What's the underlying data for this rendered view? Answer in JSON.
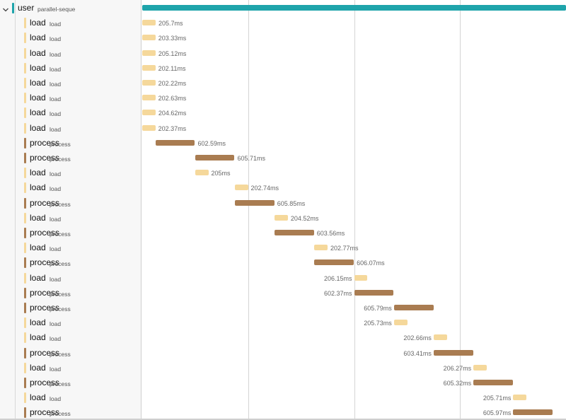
{
  "colors": {
    "user": "#1fa4ab",
    "load": "#f5d89b",
    "process": "#a97c51"
  },
  "timeline": {
    "total_ms": 6500,
    "grid_fractions": [
      0.25,
      0.5,
      0.75
    ]
  },
  "spans": [
    {
      "service": "user",
      "operation": "parallel-seque",
      "kind": "user",
      "start_ms": 0,
      "duration_ms": 6500,
      "duration_label": "",
      "root": true,
      "label_side": "none"
    },
    {
      "service": "load",
      "operation": "load",
      "kind": "load",
      "start_ms": 0,
      "duration_ms": 205.7,
      "duration_label": "205.7ms",
      "label_side": "right"
    },
    {
      "service": "load",
      "operation": "load",
      "kind": "load",
      "start_ms": 0,
      "duration_ms": 203.33,
      "duration_label": "203.33ms",
      "label_side": "right"
    },
    {
      "service": "load",
      "operation": "load",
      "kind": "load",
      "start_ms": 0,
      "duration_ms": 205.12,
      "duration_label": "205.12ms",
      "label_side": "right"
    },
    {
      "service": "load",
      "operation": "load",
      "kind": "load",
      "start_ms": 0,
      "duration_ms": 202.11,
      "duration_label": "202.11ms",
      "label_side": "right"
    },
    {
      "service": "load",
      "operation": "load",
      "kind": "load",
      "start_ms": 0,
      "duration_ms": 202.22,
      "duration_label": "202.22ms",
      "label_side": "right"
    },
    {
      "service": "load",
      "operation": "load",
      "kind": "load",
      "start_ms": 0,
      "duration_ms": 202.63,
      "duration_label": "202.63ms",
      "label_side": "right"
    },
    {
      "service": "load",
      "operation": "load",
      "kind": "load",
      "start_ms": 0,
      "duration_ms": 204.62,
      "duration_label": "204.62ms",
      "label_side": "right"
    },
    {
      "service": "load",
      "operation": "load",
      "kind": "load",
      "start_ms": 0,
      "duration_ms": 202.37,
      "duration_label": "202.37ms",
      "label_side": "right"
    },
    {
      "service": "process",
      "operation": "process",
      "kind": "process",
      "start_ms": 206,
      "duration_ms": 602.59,
      "duration_label": "602.59ms",
      "label_side": "right"
    },
    {
      "service": "process",
      "operation": "process",
      "kind": "process",
      "start_ms": 810,
      "duration_ms": 605.71,
      "duration_label": "605.71ms",
      "label_side": "right"
    },
    {
      "service": "load",
      "operation": "load",
      "kind": "load",
      "start_ms": 810,
      "duration_ms": 205,
      "duration_label": "205ms",
      "label_side": "right"
    },
    {
      "service": "load",
      "operation": "load",
      "kind": "load",
      "start_ms": 1420,
      "duration_ms": 202.74,
      "duration_label": "202.74ms",
      "label_side": "right"
    },
    {
      "service": "process",
      "operation": "process",
      "kind": "process",
      "start_ms": 1420,
      "duration_ms": 605.85,
      "duration_label": "605.85ms",
      "label_side": "right"
    },
    {
      "service": "load",
      "operation": "load",
      "kind": "load",
      "start_ms": 2030,
      "duration_ms": 204.52,
      "duration_label": "204.52ms",
      "label_side": "right"
    },
    {
      "service": "process",
      "operation": "process",
      "kind": "process",
      "start_ms": 2030,
      "duration_ms": 603.56,
      "duration_label": "603.56ms",
      "label_side": "right"
    },
    {
      "service": "load",
      "operation": "load",
      "kind": "load",
      "start_ms": 2640,
      "duration_ms": 202.77,
      "duration_label": "202.77ms",
      "label_side": "right"
    },
    {
      "service": "process",
      "operation": "process",
      "kind": "process",
      "start_ms": 2640,
      "duration_ms": 606.07,
      "duration_label": "606.07ms",
      "label_side": "right"
    },
    {
      "service": "load",
      "operation": "load",
      "kind": "load",
      "start_ms": 3250,
      "duration_ms": 206.15,
      "duration_label": "206.15ms",
      "label_side": "left"
    },
    {
      "service": "process",
      "operation": "process",
      "kind": "process",
      "start_ms": 3250,
      "duration_ms": 602.37,
      "duration_label": "602.37ms",
      "label_side": "left"
    },
    {
      "service": "process",
      "operation": "process",
      "kind": "process",
      "start_ms": 3860,
      "duration_ms": 605.79,
      "duration_label": "605.79ms",
      "label_side": "left"
    },
    {
      "service": "load",
      "operation": "load",
      "kind": "load",
      "start_ms": 3860,
      "duration_ms": 205.73,
      "duration_label": "205.73ms",
      "label_side": "left"
    },
    {
      "service": "load",
      "operation": "load",
      "kind": "load",
      "start_ms": 4470,
      "duration_ms": 202.66,
      "duration_label": "202.66ms",
      "label_side": "left"
    },
    {
      "service": "process",
      "operation": "process",
      "kind": "process",
      "start_ms": 4470,
      "duration_ms": 603.41,
      "duration_label": "603.41ms",
      "label_side": "left"
    },
    {
      "service": "load",
      "operation": "load",
      "kind": "load",
      "start_ms": 5080,
      "duration_ms": 206.27,
      "duration_label": "206.27ms",
      "label_side": "left"
    },
    {
      "service": "process",
      "operation": "process",
      "kind": "process",
      "start_ms": 5080,
      "duration_ms": 605.32,
      "duration_label": "605.32ms",
      "label_side": "left"
    },
    {
      "service": "load",
      "operation": "load",
      "kind": "load",
      "start_ms": 5690,
      "duration_ms": 205.71,
      "duration_label": "205.71ms",
      "label_side": "left"
    },
    {
      "service": "process",
      "operation": "process",
      "kind": "process",
      "start_ms": 5690,
      "duration_ms": 605.97,
      "duration_label": "605.97ms",
      "label_side": "left"
    }
  ]
}
